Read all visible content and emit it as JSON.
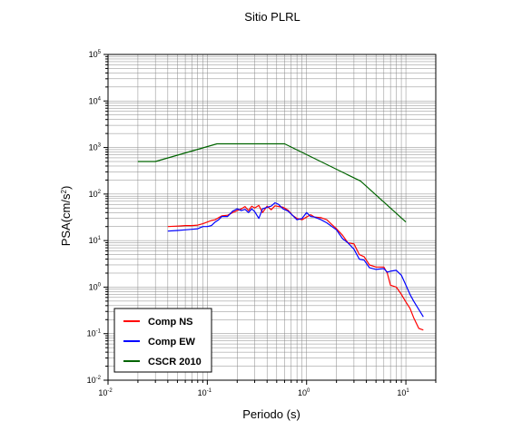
{
  "chart_data": {
    "type": "line",
    "title": "Sitio PLRL",
    "xlabel": "Periodo (s)",
    "ylabel": "PSA(cm/s",
    "ylabel_sup": "2",
    "ylabel_close": ")",
    "xscale": "log",
    "yscale": "log",
    "xlim": [
      0.01,
      20
    ],
    "ylim": [
      0.01,
      100000
    ],
    "grid": true,
    "legend_position": "bottom-left",
    "x_ticks": [
      {
        "base": "10",
        "exp": "-2",
        "value": 0.01
      },
      {
        "base": "10",
        "exp": "-1",
        "value": 0.1
      },
      {
        "base": "10",
        "exp": "0",
        "value": 1
      },
      {
        "base": "10",
        "exp": "1",
        "value": 10
      }
    ],
    "y_ticks": [
      {
        "base": "10",
        "exp": "-2",
        "value": 0.01
      },
      {
        "base": "10",
        "exp": "-1",
        "value": 0.1
      },
      {
        "base": "10",
        "exp": "0",
        "value": 1
      },
      {
        "base": "10",
        "exp": "1",
        "value": 10
      },
      {
        "base": "10",
        "exp": "2",
        "value": 100
      },
      {
        "base": "10",
        "exp": "3",
        "value": 1000
      },
      {
        "base": "10",
        "exp": "4",
        "value": 10000
      },
      {
        "base": "10",
        "exp": "5",
        "value": 100000
      }
    ],
    "series": [
      {
        "name": "Comp NS",
        "color": "#ff0000",
        "points": [
          [
            0.04,
            20
          ],
          [
            0.05,
            20.5
          ],
          [
            0.06,
            21
          ],
          [
            0.07,
            21
          ],
          [
            0.08,
            21.5
          ],
          [
            0.09,
            23
          ],
          [
            0.1,
            25
          ],
          [
            0.11,
            27
          ],
          [
            0.12,
            28
          ],
          [
            0.13,
            31
          ],
          [
            0.14,
            34
          ],
          [
            0.16,
            35
          ],
          [
            0.18,
            40
          ],
          [
            0.2,
            44
          ],
          [
            0.22,
            48
          ],
          [
            0.24,
            54
          ],
          [
            0.26,
            44
          ],
          [
            0.28,
            55
          ],
          [
            0.3,
            50
          ],
          [
            0.33,
            57
          ],
          [
            0.36,
            40
          ],
          [
            0.4,
            55
          ],
          [
            0.44,
            46
          ],
          [
            0.48,
            56
          ],
          [
            0.52,
            54
          ],
          [
            0.58,
            52
          ],
          [
            0.65,
            45
          ],
          [
            0.72,
            35
          ],
          [
            0.8,
            30
          ],
          [
            0.9,
            28
          ],
          [
            1.0,
            32
          ],
          [
            1.1,
            36
          ],
          [
            1.2,
            32
          ],
          [
            1.4,
            31
          ],
          [
            1.6,
            28
          ],
          [
            1.8,
            22
          ],
          [
            2.0,
            18
          ],
          [
            2.3,
            13
          ],
          [
            2.6,
            9
          ],
          [
            3.0,
            8.5
          ],
          [
            3.4,
            5
          ],
          [
            3.8,
            4.5
          ],
          [
            4.3,
            3
          ],
          [
            5.0,
            2.7
          ],
          [
            6.0,
            2.7
          ],
          [
            6.5,
            2
          ],
          [
            7.0,
            1.1
          ],
          [
            8.0,
            1.0
          ],
          [
            9.0,
            0.7
          ],
          [
            10.0,
            0.48
          ],
          [
            11.0,
            0.35
          ],
          [
            12.0,
            0.22
          ],
          [
            13.5,
            0.13
          ],
          [
            15.0,
            0.12
          ]
        ]
      },
      {
        "name": "Comp EW",
        "color": "#0000ff",
        "points": [
          [
            0.04,
            16
          ],
          [
            0.05,
            16.5
          ],
          [
            0.06,
            17
          ],
          [
            0.07,
            17.5
          ],
          [
            0.08,
            18
          ],
          [
            0.09,
            20
          ],
          [
            0.1,
            20
          ],
          [
            0.11,
            21
          ],
          [
            0.12,
            25
          ],
          [
            0.13,
            28
          ],
          [
            0.14,
            33
          ],
          [
            0.16,
            33
          ],
          [
            0.18,
            43
          ],
          [
            0.2,
            48
          ],
          [
            0.22,
            44
          ],
          [
            0.24,
            47
          ],
          [
            0.26,
            40
          ],
          [
            0.28,
            48
          ],
          [
            0.3,
            42
          ],
          [
            0.33,
            30
          ],
          [
            0.36,
            48
          ],
          [
            0.4,
            52
          ],
          [
            0.44,
            55
          ],
          [
            0.48,
            65
          ],
          [
            0.52,
            60
          ],
          [
            0.58,
            48
          ],
          [
            0.65,
            43
          ],
          [
            0.72,
            35
          ],
          [
            0.8,
            28
          ],
          [
            0.9,
            30
          ],
          [
            1.0,
            40
          ],
          [
            1.1,
            33
          ],
          [
            1.2,
            32
          ],
          [
            1.4,
            28
          ],
          [
            1.6,
            24
          ],
          [
            1.8,
            20
          ],
          [
            2.0,
            17
          ],
          [
            2.3,
            11
          ],
          [
            2.6,
            9
          ],
          [
            3.0,
            6.5
          ],
          [
            3.4,
            4
          ],
          [
            3.8,
            3.8
          ],
          [
            4.3,
            2.6
          ],
          [
            5.0,
            2.4
          ],
          [
            6.0,
            2.5
          ],
          [
            6.5,
            2.1
          ],
          [
            7.0,
            2.2
          ],
          [
            8.0,
            2.3
          ],
          [
            9.0,
            1.8
          ],
          [
            10.0,
            1.1
          ],
          [
            11.0,
            0.7
          ],
          [
            12.0,
            0.5
          ],
          [
            13.5,
            0.33
          ],
          [
            15.0,
            0.23
          ]
        ]
      },
      {
        "name": "CSCR 2010",
        "color": "#006400",
        "points": [
          [
            0.02,
            500
          ],
          [
            0.03,
            500
          ],
          [
            0.125,
            1200
          ],
          [
            0.6,
            1200
          ],
          [
            3.5,
            190
          ],
          [
            10.0,
            25
          ]
        ]
      }
    ]
  }
}
